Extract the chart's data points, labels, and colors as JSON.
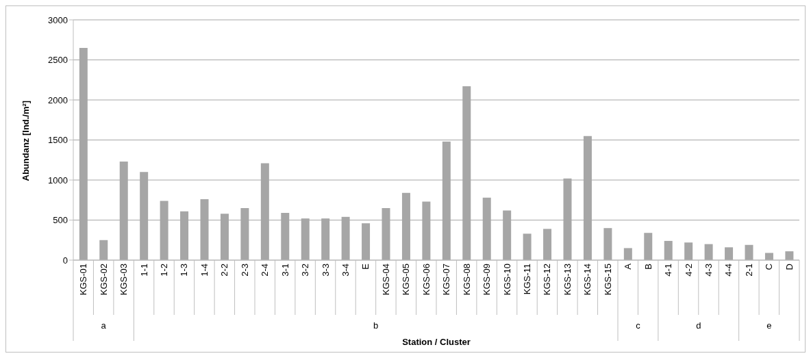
{
  "chart_data": {
    "type": "bar",
    "xlabel": "Station / Cluster",
    "ylabel": "Abundanz [Ind./m²]",
    "categories": [
      "KGS-01",
      "KGS-02",
      "KGS-03",
      "1-1",
      "1-2",
      "1-3",
      "1-4",
      "2-2",
      "2-3",
      "2-4",
      "3-1",
      "3-2",
      "3-3",
      "3-4",
      "E",
      "KGS-04",
      "KGS-05",
      "KGS-06",
      "KGS-07",
      "KGS-08",
      "KGS-09",
      "KGS-10",
      "KGS-11",
      "KGS-12",
      "KGS-13",
      "KGS-14",
      "KGS-15",
      "A",
      "B",
      "4-1",
      "4-2",
      "4-3",
      "4-4",
      "2-1",
      "C",
      "D"
    ],
    "values": [
      2650,
      250,
      1230,
      1100,
      740,
      610,
      760,
      580,
      650,
      1210,
      590,
      520,
      520,
      540,
      460,
      650,
      840,
      730,
      1480,
      2170,
      780,
      620,
      330,
      390,
      1020,
      1550,
      400,
      150,
      340,
      240,
      220,
      200,
      160,
      190,
      90,
      110
    ],
    "color": "#a6a6a6",
    "ylim": [
      0,
      3000
    ],
    "yticks": [
      0,
      500,
      1000,
      1500,
      2000,
      2500,
      3000
    ],
    "grid": "y",
    "legend": false,
    "annotations": [
      "a",
      "b",
      "c",
      "d",
      "e"
    ]
  }
}
